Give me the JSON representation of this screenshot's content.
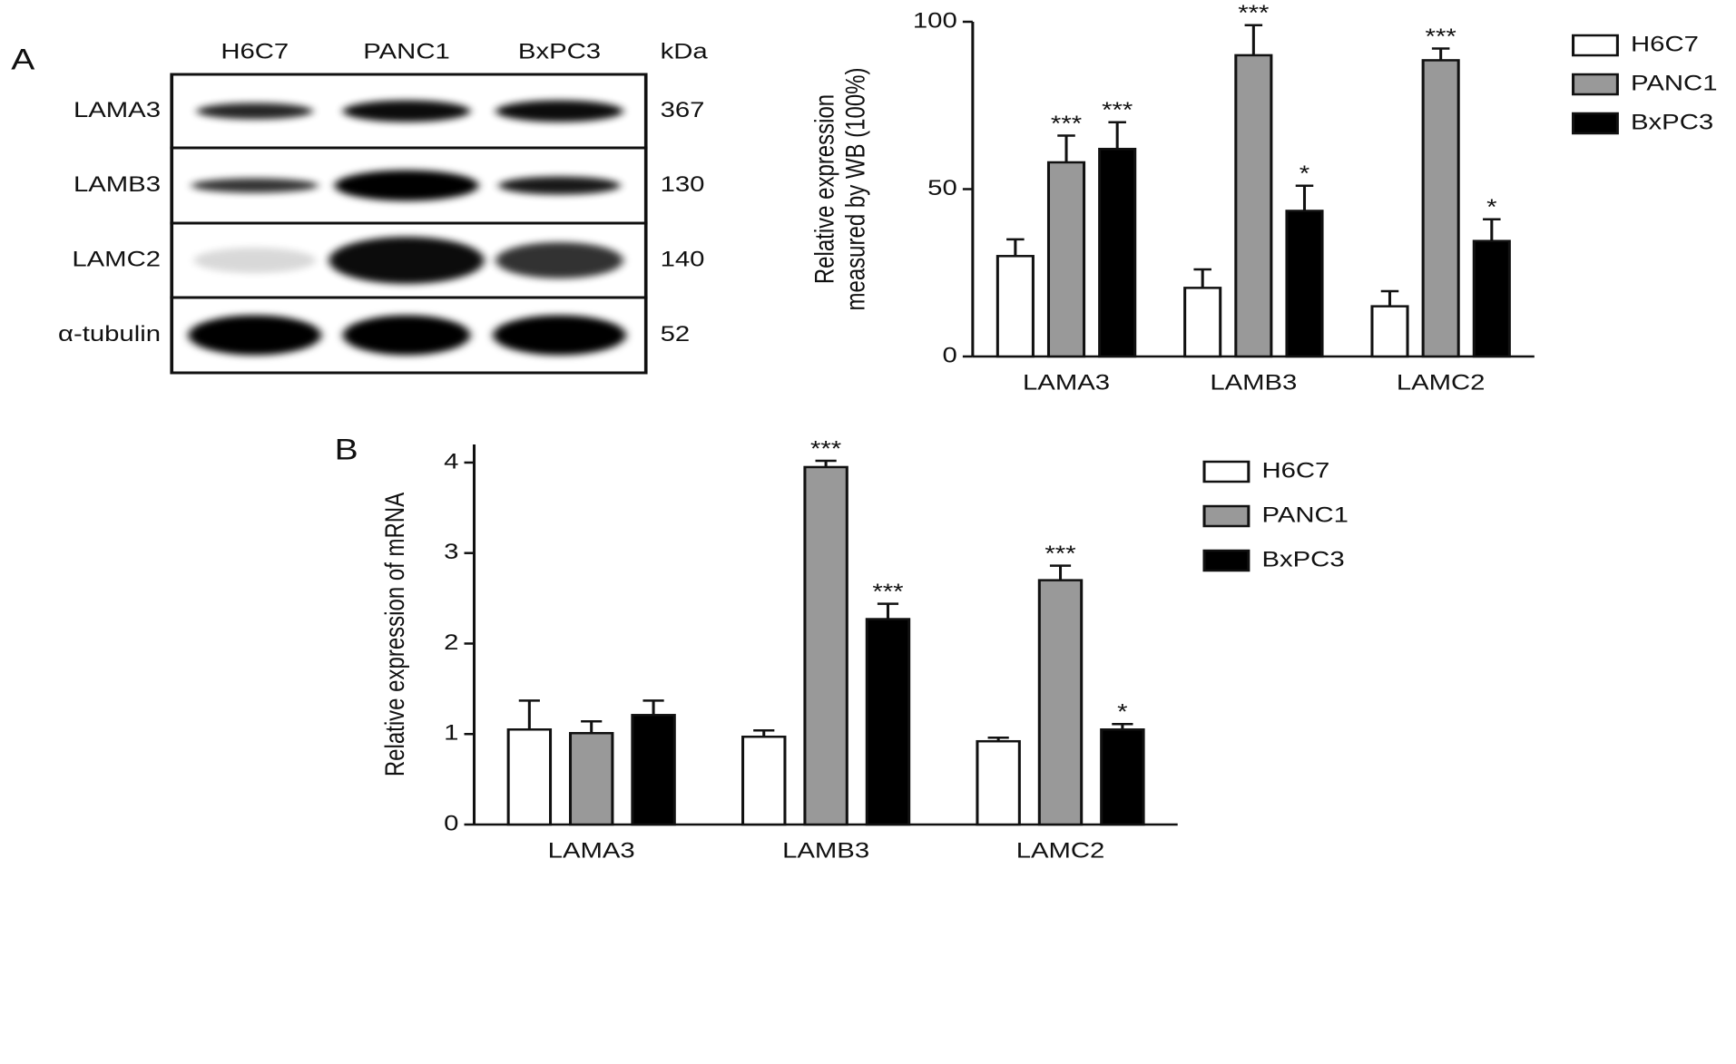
{
  "panel_labels": [
    "A",
    "B"
  ],
  "blot": {
    "lanes": [
      "H6C7",
      "PANC1",
      "BxPC3"
    ],
    "size_header": "kDa",
    "rows": [
      {
        "protein": "LAMA3",
        "size": "367"
      },
      {
        "protein": "LAMB3",
        "size": "130"
      },
      {
        "protein": "LAMC2",
        "size": "140"
      },
      {
        "protein": "α-tubulin",
        "size": "52"
      }
    ]
  },
  "chart_data": [
    {
      "type": "bar",
      "ylabel": [
        "Relative expression",
        "measured by WB (100%)"
      ],
      "categories": [
        "LAMA3",
        "LAMB3",
        "LAMC2"
      ],
      "ylim": [
        0,
        100
      ],
      "yticks": [
        0,
        50,
        100
      ],
      "series": [
        {
          "name": "H6C7",
          "color": "#ffffff",
          "values": [
            30,
            20.5,
            15
          ],
          "errors": [
            5,
            5.5,
            4.5
          ],
          "annotations": [
            null,
            null,
            null
          ]
        },
        {
          "name": "PANC1",
          "color": "#999999",
          "values": [
            58,
            90,
            88.5
          ],
          "errors": [
            8,
            9,
            3.5
          ],
          "annotations": [
            "***",
            "***",
            "***"
          ]
        },
        {
          "name": "BxPC3",
          "color": "#000000",
          "values": [
            62,
            43.5,
            34.5
          ],
          "errors": [
            8,
            7.5,
            6.5
          ],
          "annotations": [
            "***",
            "*",
            "*"
          ]
        }
      ]
    },
    {
      "type": "bar",
      "ylabel": [
        "Relative expression of mRNA"
      ],
      "categories": [
        "LAMA3",
        "LAMB3",
        "LAMC2"
      ],
      "ylim": [
        0,
        4.2
      ],
      "yticks": [
        0,
        1,
        2,
        3,
        4
      ],
      "series": [
        {
          "name": "H6C7",
          "color": "#ffffff",
          "values": [
            1.05,
            0.97,
            0.92
          ],
          "errors": [
            0.32,
            0.07,
            0.04
          ],
          "annotations": [
            null,
            null,
            null
          ]
        },
        {
          "name": "PANC1",
          "color": "#999999",
          "values": [
            1.01,
            3.95,
            2.7
          ],
          "errors": [
            0.13,
            0.07,
            0.16
          ],
          "annotations": [
            null,
            "***",
            "***"
          ]
        },
        {
          "name": "BxPC3",
          "color": "#000000",
          "values": [
            1.21,
            2.27,
            1.05
          ],
          "errors": [
            0.16,
            0.17,
            0.06
          ],
          "annotations": [
            null,
            "***",
            "*"
          ]
        }
      ]
    }
  ]
}
